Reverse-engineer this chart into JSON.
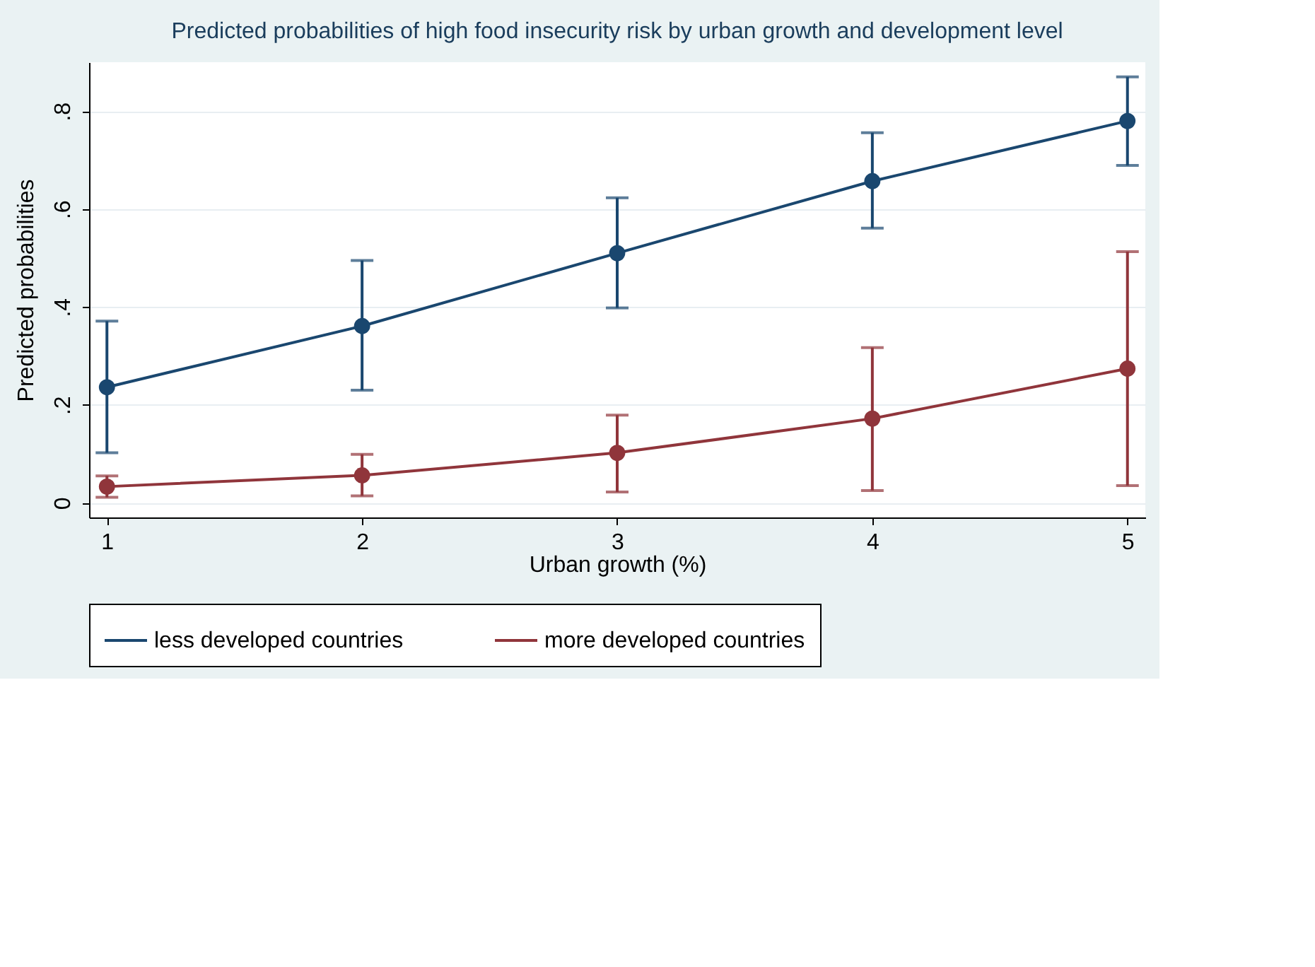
{
  "chart_data": {
    "type": "line",
    "title": "Predicted probabilities of high food insecurity risk by urban growth and development level",
    "xlabel": "Urban growth (%)",
    "ylabel": "Predicted probabilities",
    "x": [
      1,
      2,
      3,
      4,
      5
    ],
    "xlim": [
      0.93,
      5.07
    ],
    "xticks": [
      1,
      2,
      3,
      4,
      5
    ],
    "ylim": [
      -0.03,
      0.9
    ],
    "yticks": [
      {
        "value": 0,
        "label": "0"
      },
      {
        "value": 0.2,
        "label": ".2"
      },
      {
        "value": 0.4,
        "label": ".4"
      },
      {
        "value": 0.6,
        "label": ".6"
      },
      {
        "value": 0.8,
        "label": ".8"
      }
    ],
    "series": [
      {
        "name": "less developed countries",
        "color": "#1a476f",
        "values": [
          0.236,
          0.361,
          0.51,
          0.657,
          0.78
        ],
        "errors": [
          [
            0.102,
            0.371
          ],
          [
            0.23,
            0.495
          ],
          [
            0.398,
            0.623
          ],
          [
            0.561,
            0.756
          ],
          [
            0.689,
            0.87
          ]
        ]
      },
      {
        "name": "more developed countries",
        "color": "#90353b",
        "values": [
          0.033,
          0.056,
          0.102,
          0.172,
          0.274
        ],
        "errors": [
          [
            0.011,
            0.055
          ],
          [
            0.014,
            0.099
          ],
          [
            0.022,
            0.179
          ],
          [
            0.025,
            0.317
          ],
          [
            0.035,
            0.513
          ]
        ]
      }
    ],
    "grid": "y",
    "legend": "bottom",
    "marker": "circle",
    "line_style": "solid"
  }
}
